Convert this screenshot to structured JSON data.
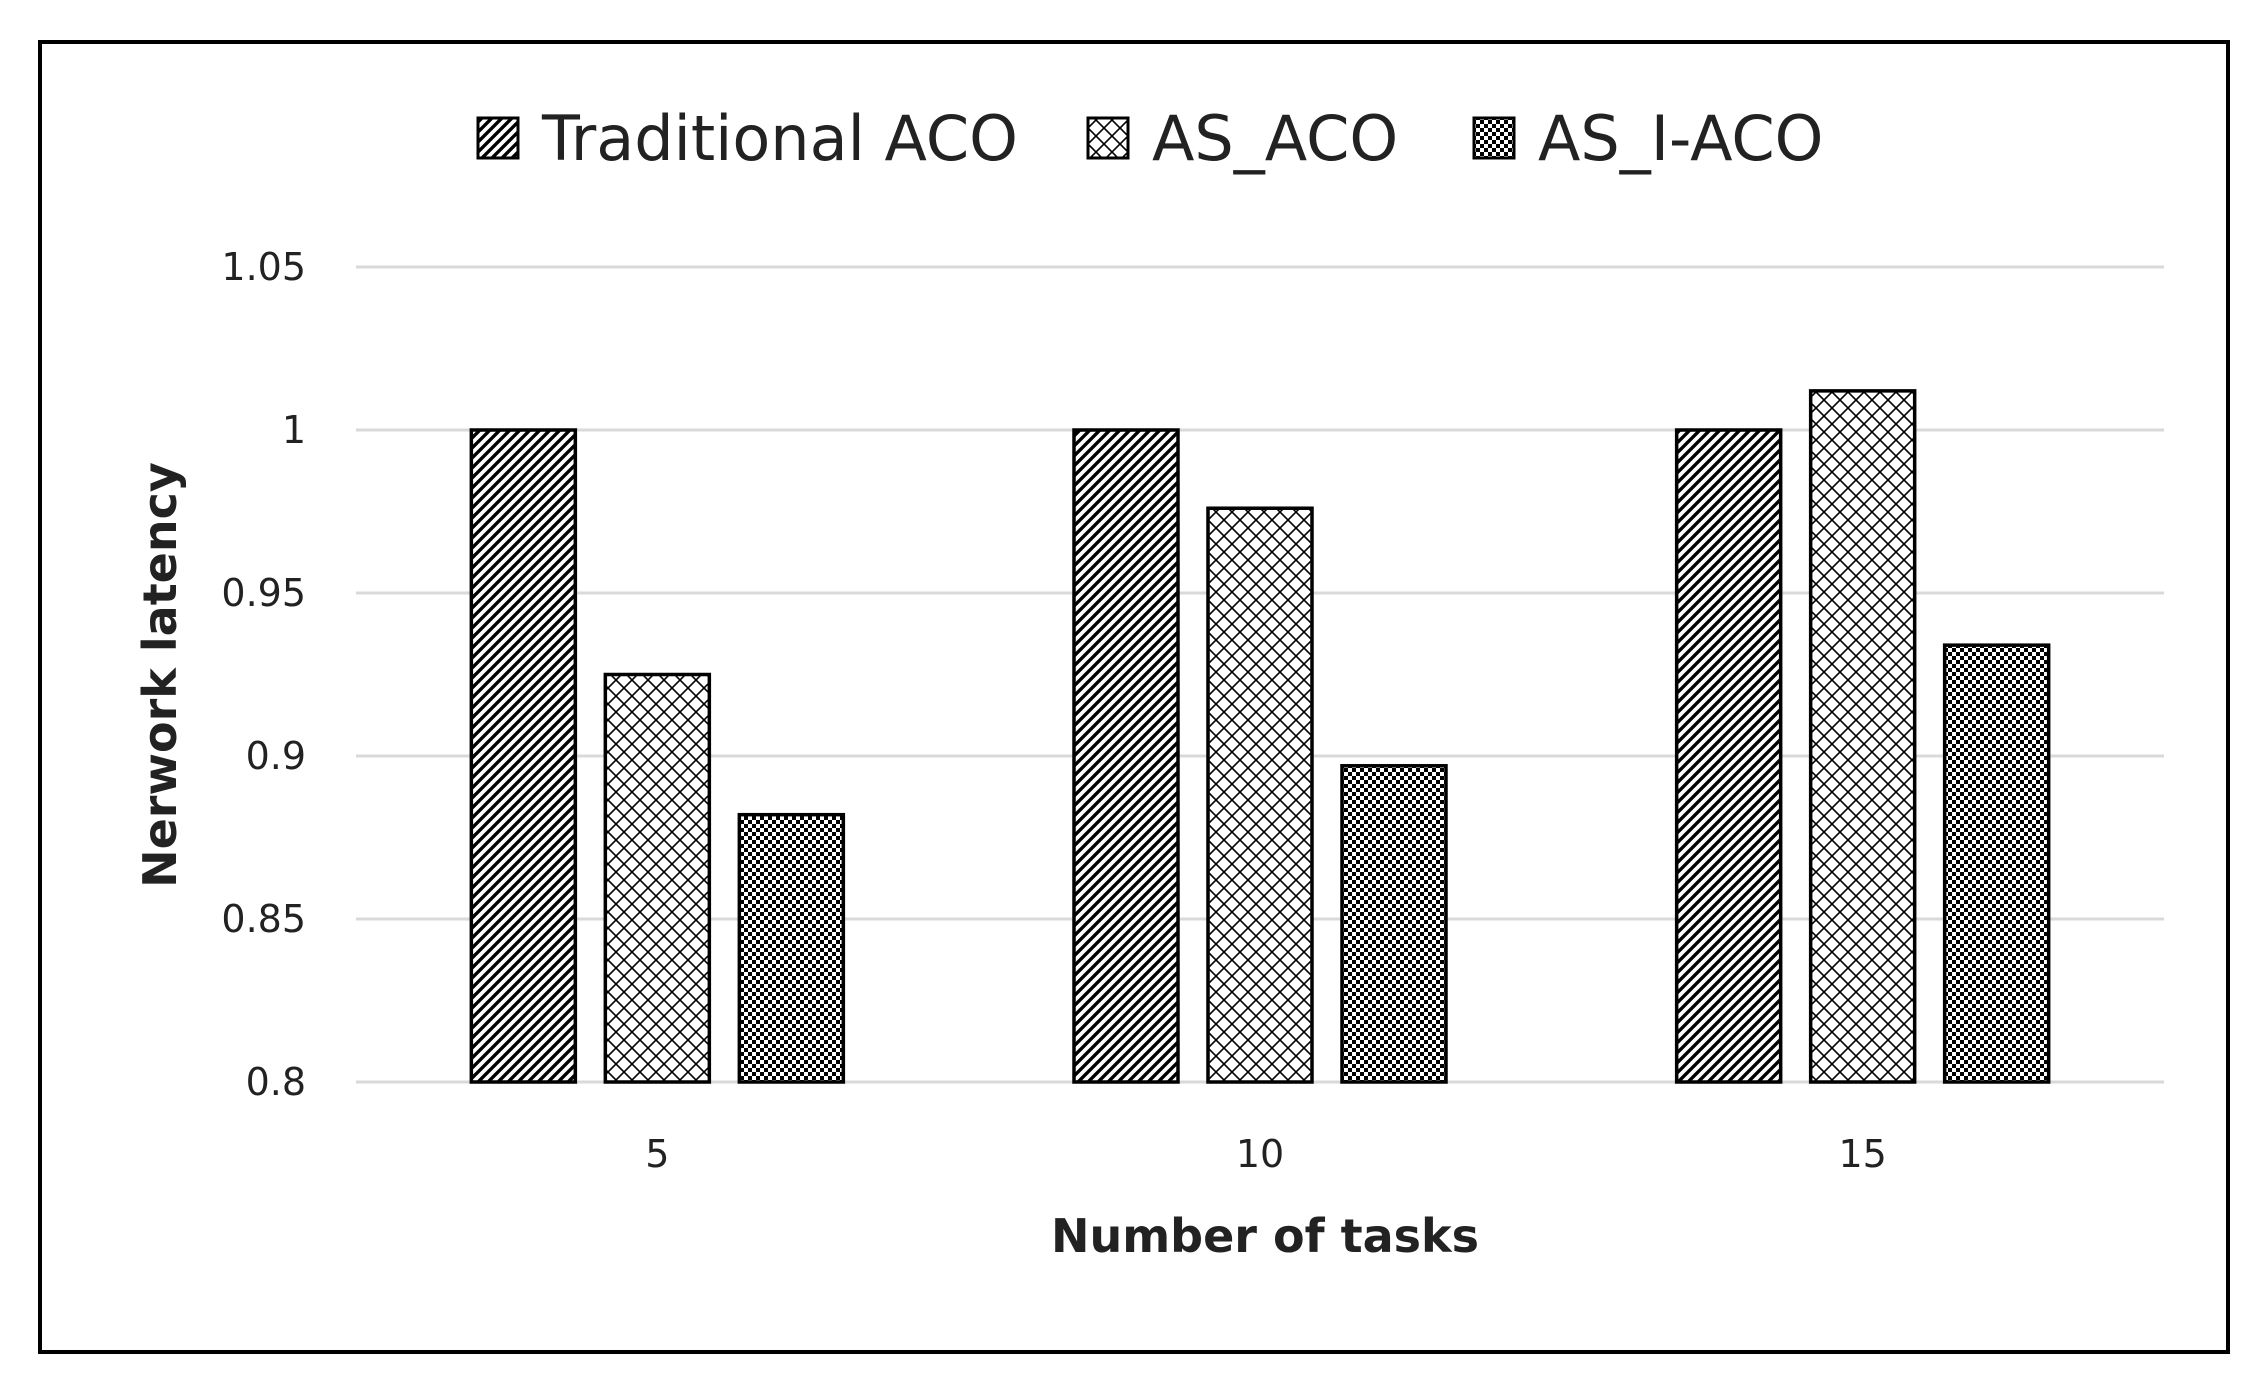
{
  "chart_data": {
    "type": "bar",
    "title": "",
    "xlabel": "Number of tasks",
    "ylabel": "Nerwork latency",
    "categories": [
      "5",
      "10",
      "15"
    ],
    "series": [
      {
        "name": "Traditional ACO",
        "values": [
          1.0,
          1.0,
          1.0
        ],
        "pattern": "diagonal-hatch"
      },
      {
        "name": "AS_ACO",
        "values": [
          0.925,
          0.976,
          1.012
        ],
        "pattern": "light-crosshatch"
      },
      {
        "name": "AS_I-ACO",
        "values": [
          0.882,
          0.897,
          0.934
        ],
        "pattern": "dense-checker"
      }
    ],
    "ylim": [
      0.8,
      1.05
    ],
    "yticks": [
      "0.8",
      "0.85",
      "0.9",
      "0.95",
      "1",
      "1.05"
    ],
    "grid": true,
    "legend_position": "top"
  },
  "colors": {
    "gridline": "#d9d9d9",
    "bar_outline": "#000000",
    "text": "#222222",
    "frame": "#000000"
  }
}
